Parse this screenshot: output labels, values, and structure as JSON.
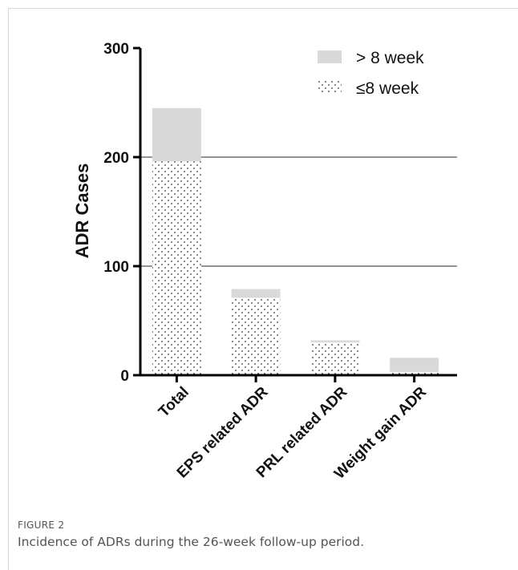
{
  "figure": {
    "label": "FIGURE 2",
    "caption": "Incidence of ADRs during the 26-week follow-up period."
  },
  "chart_data": {
    "type": "bar",
    "stacked": true,
    "title": "",
    "xlabel": "",
    "ylabel": "ADR Cases",
    "ylim": [
      0,
      300
    ],
    "yticks": [
      0,
      100,
      200,
      300
    ],
    "grid": true,
    "legend_position": "top-right",
    "categories": [
      "Total",
      "EPS related ADR",
      "PRL related ADR",
      "Weight gain ADR"
    ],
    "series": [
      {
        "name": "≤8 week",
        "pattern": "dotted",
        "values": [
          196,
          71,
          30,
          3
        ]
      },
      {
        "name": "> 8 week",
        "pattern": "solid",
        "color": "#d9d9d9",
        "values": [
          49,
          8,
          2,
          13
        ]
      }
    ]
  }
}
